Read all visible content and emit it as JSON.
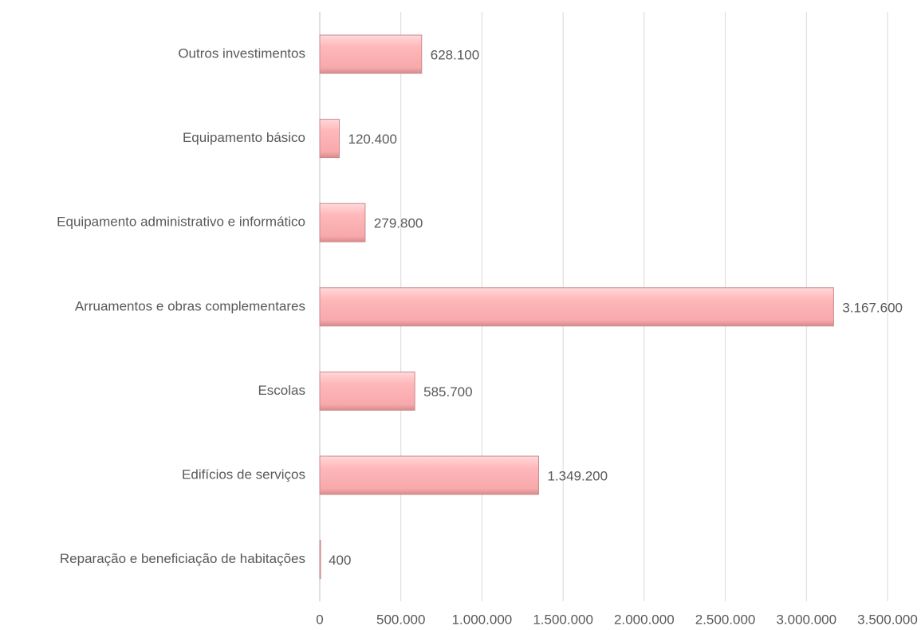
{
  "chart_data": {
    "type": "bar",
    "orientation": "horizontal",
    "categories": [
      "Outros investimentos",
      "Equipamento básico",
      "Equipamento administrativo e informático",
      "Arruamentos e obras complementares",
      "Escolas",
      "Edifícios de serviços",
      "Reparação e beneficiação de habitações"
    ],
    "values": [
      628100,
      120400,
      279800,
      3167600,
      585700,
      1349200,
      400
    ],
    "value_labels": [
      "628.100",
      "120.400",
      "279.800",
      "3.167.600",
      "585.700",
      "1.349.200",
      "400"
    ],
    "color": "#ffb6b8",
    "xlim": [
      0,
      3500000
    ],
    "xticks": [
      0,
      {
        "value": 500000,
        "label": "500.000"
      },
      {
        "value": 1000000,
        "label": "1.000.000"
      },
      {
        "value": 1500000,
        "label": "1.500.000"
      },
      {
        "value": 2000000,
        "label": "2.000.000"
      },
      {
        "value": 2500000,
        "label": "2.500.000"
      },
      {
        "value": 3000000,
        "label": "3.000.000"
      },
      {
        "value": 3500000,
        "label": "3.500.000"
      }
    ],
    "grid": true
  }
}
